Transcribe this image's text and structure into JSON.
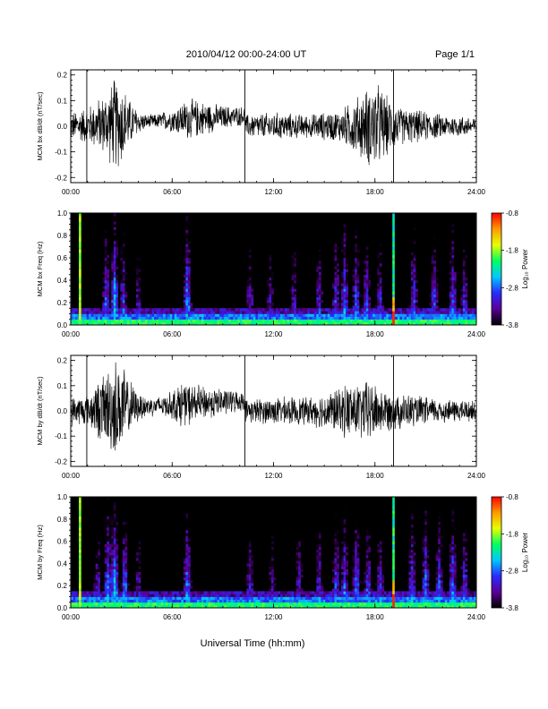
{
  "header": {
    "title": "2010/04/12  00:00-24:00 UT",
    "page": "Page 1/1"
  },
  "footer": {
    "xlabel": "Universal Time (hh:mm)"
  },
  "colorbar": {
    "ticks": [
      "-0.8",
      "-1.8",
      "-2.8",
      "-3.8"
    ],
    "label": "Log₁₀ Power",
    "stops": [
      "#000000",
      "#5a0096",
      "#2a2aff",
      "#00c8ff",
      "#00ff60",
      "#e6ff00",
      "#ff9a00",
      "#ff0000"
    ]
  },
  "chart_data": [
    {
      "type": "line",
      "ylabel": "MCM bx dB/dt (nT/sec)",
      "xticks": [
        "00:00",
        "06:00",
        "12:00",
        "18:00",
        "24:00"
      ],
      "yticks": [
        "0.2",
        "0.1",
        "0.0",
        "-0.1",
        "-0.2"
      ],
      "xlim": [
        0,
        24
      ],
      "ylim": [
        -0.22,
        0.22
      ],
      "vertical_lines_hours": [
        0.95,
        10.3,
        19.1
      ],
      "series": [
        {
          "envelope_hours": [
            0,
            1,
            2,
            2.6,
            3,
            3.5,
            4,
            4.5,
            5,
            6,
            7,
            8,
            9,
            10.3,
            10.4,
            12,
            14,
            15,
            16,
            16.8,
            17.5,
            18,
            18.8,
            19.5,
            20.5,
            22,
            24
          ],
          "envelope_amplitude": [
            0.06,
            0.08,
            0.13,
            0.2,
            0.18,
            0.1,
            0.05,
            0.03,
            0.03,
            0.05,
            0.09,
            0.07,
            0.05,
            0.04,
            0.05,
            0.06,
            0.05,
            0.06,
            0.07,
            0.12,
            0.16,
            0.2,
            0.12,
            0.08,
            0.07,
            0.05,
            0.04
          ],
          "offset_hours": [
            0,
            10.3,
            10.35,
            24
          ],
          "offset_value": [
            0.0,
            0.04,
            0.0,
            0.0
          ]
        }
      ]
    },
    {
      "type": "heatmap",
      "ylabel": "MCM bx Freq (Hz)",
      "xticks": [
        "00:00",
        "06:00",
        "12:00",
        "18:00",
        "24:00"
      ],
      "yticks": [
        "1.0",
        "0.8",
        "0.6",
        "0.4",
        "0.2",
        "0.0"
      ],
      "xlim": [
        0,
        24
      ],
      "ylim": [
        0,
        1.0
      ],
      "zlim": [
        -3.8,
        -0.8
      ],
      "zlabel": "Log10 Power",
      "spike_hours": [
        0.55,
        19.1
      ],
      "activity_hours": [
        2.1,
        2.6,
        3.1,
        4.0,
        6.9,
        10.6,
        11.8,
        13.2,
        14.7,
        15.7,
        16.2,
        16.9,
        17.5,
        18.3,
        20.3,
        21.5,
        22.6,
        23.3
      ],
      "activity_power": [
        -2.6,
        -2.3,
        -2.7,
        -3.0,
        -2.4,
        -2.9,
        -3.0,
        -2.9,
        -2.8,
        -2.7,
        -2.5,
        -2.6,
        -2.7,
        -2.8,
        -2.6,
        -2.7,
        -2.6,
        -2.8
      ]
    },
    {
      "type": "line",
      "ylabel": "MCM by dB/dt (nT/sec)",
      "xticks": [
        "00:00",
        "06:00",
        "12:00",
        "18:00",
        "24:00"
      ],
      "yticks": [
        "0.2",
        "0.1",
        "0.0",
        "-0.1",
        "-0.2"
      ],
      "xlim": [
        0,
        24
      ],
      "ylim": [
        -0.22,
        0.22
      ],
      "vertical_lines_hours": [
        0.95,
        10.3,
        19.1
      ],
      "series": [
        {
          "envelope_hours": [
            0,
            1,
            1.8,
            2.6,
            3,
            3.5,
            4,
            5,
            6,
            6.5,
            7,
            8,
            9,
            10.3,
            10.4,
            12,
            14,
            15,
            16,
            16.5,
            17,
            17.7,
            18.5,
            19.5,
            21,
            22.5,
            24
          ],
          "envelope_amplitude": [
            0.06,
            0.07,
            0.14,
            0.22,
            0.2,
            0.12,
            0.06,
            0.04,
            0.06,
            0.1,
            0.09,
            0.07,
            0.06,
            0.04,
            0.05,
            0.06,
            0.06,
            0.08,
            0.1,
            0.13,
            0.12,
            0.14,
            0.09,
            0.08,
            0.06,
            0.05,
            0.05
          ],
          "offset_hours": [
            0,
            10.3,
            10.35,
            24
          ],
          "offset_value": [
            0.0,
            0.04,
            0.0,
            0.0
          ]
        }
      ]
    },
    {
      "type": "heatmap",
      "ylabel": "MCM by Freq (Hz)",
      "xticks": [
        "00:00",
        "06:00",
        "12:00",
        "18:00",
        "24:00"
      ],
      "yticks": [
        "1.0",
        "0.8",
        "0.6",
        "0.4",
        "0.2",
        "0.0"
      ],
      "xlim": [
        0,
        24
      ],
      "ylim": [
        0,
        1.0
      ],
      "zlim": [
        -3.8,
        -0.8
      ],
      "zlabel": "Log10 Power",
      "spike_hours": [
        0.55,
        19.1
      ],
      "activity_hours": [
        1.6,
        2.2,
        2.6,
        3.2,
        4.0,
        6.9,
        10.6,
        11.9,
        13.5,
        14.7,
        15.7,
        16.2,
        16.9,
        17.6,
        18.3,
        20.2,
        21.0,
        21.8,
        22.6,
        23.3
      ],
      "activity_power": [
        -2.9,
        -2.4,
        -2.3,
        -2.6,
        -3.0,
        -2.5,
        -2.9,
        -3.0,
        -2.9,
        -2.8,
        -2.7,
        -2.6,
        -2.6,
        -2.7,
        -2.8,
        -2.6,
        -2.5,
        -2.6,
        -2.5,
        -2.7
      ]
    }
  ]
}
